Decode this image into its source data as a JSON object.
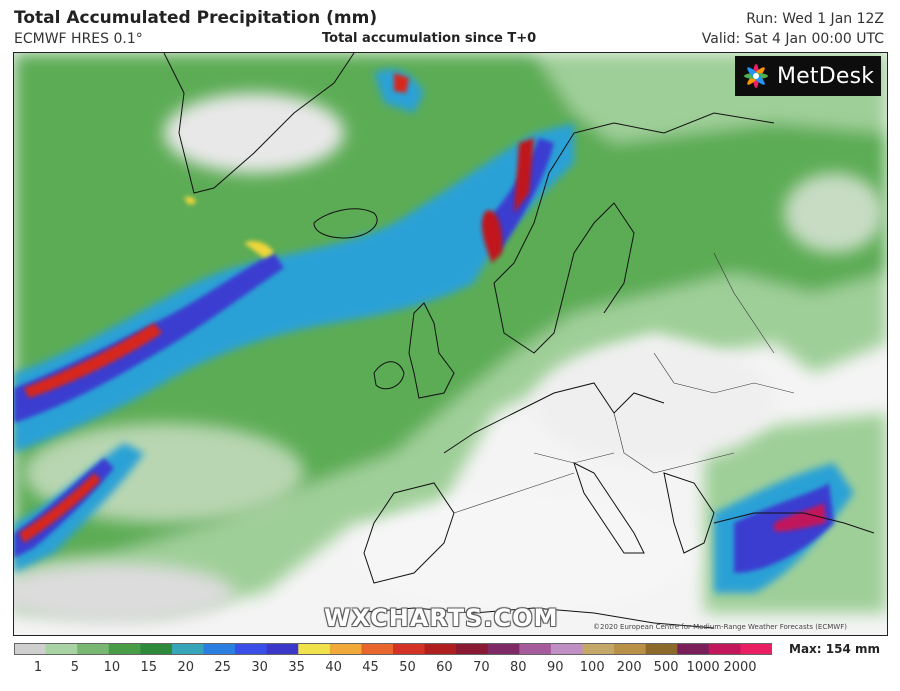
{
  "header": {
    "title": "Total Accumulated Precipitation (mm)",
    "model": "ECMWF HRES 0.1°",
    "subtitle": "Total accumulation since T+0",
    "run": "Run: Wed 1 Jan 12Z",
    "valid": "Valid: Sat 4 Jan 00:00 UTC"
  },
  "branding": {
    "logo_text": "MetDesk",
    "watermark": "WXCHARTS.COM",
    "copyright": "©2020 European Centre for Medium-Range Weather Forecasts (ECMWF)"
  },
  "legend": {
    "max_label": "Max: 154 mm",
    "ticks": [
      "1",
      "5",
      "10",
      "15",
      "20",
      "25",
      "30",
      "35",
      "40",
      "45",
      "50",
      "60",
      "70",
      "80",
      "90",
      "100",
      "200",
      "500",
      "1000",
      "2000"
    ],
    "colors": [
      "#cfcfcf",
      "#a9d3a4",
      "#78b872",
      "#4a9d47",
      "#2c8a3a",
      "#36a5b8",
      "#2b7fe0",
      "#3a4fe8",
      "#3b37c8",
      "#f0e24a",
      "#f1a93a",
      "#e8662b",
      "#d33224",
      "#b01f20",
      "#8a1a34",
      "#7e2a66",
      "#a65b9c",
      "#c08fc3",
      "#c3a86a",
      "#b89048",
      "#8d6a2c",
      "#7a1f5a",
      "#c2185b",
      "#e91e63"
    ],
    "arrow_color": "#e3176e"
  },
  "map": {
    "ocean_color": "#f3f3f3",
    "low_color": "#b9d7b2",
    "mid_color": "#4b9c4a",
    "high_color": "#2c5fe0",
    "extreme_color": "#c3171f"
  }
}
